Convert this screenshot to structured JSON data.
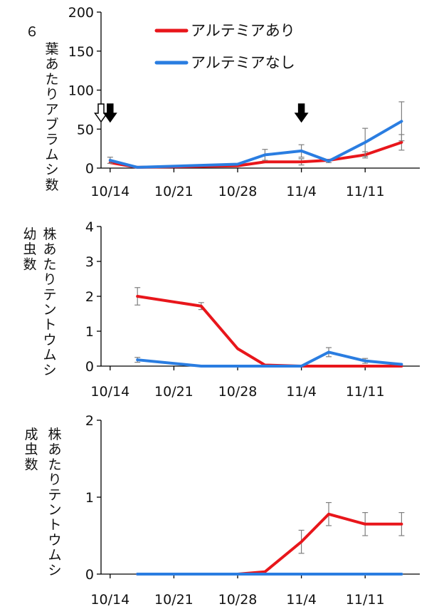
{
  "colors": {
    "with": "#e8161b",
    "without": "#2a7de1",
    "error": "#7f7f7f",
    "axis": "#000000"
  },
  "legend": {
    "with_label": "アルテミアあり",
    "without_label": "アルテミアなし"
  },
  "xaxis": {
    "ticks": [
      {
        "label": "10/14",
        "day": 0
      },
      {
        "label": "10/21",
        "day": 7
      },
      {
        "label": "10/28",
        "day": 14
      },
      {
        "label": "11/4",
        "day": 21
      },
      {
        "label": "11/11",
        "day": 28
      }
    ]
  },
  "chart_data": [
    {
      "type": "line",
      "ylabel_lines": [
        "６",
        "葉あたりアブラムシ数"
      ],
      "yticks": [
        0,
        50,
        100,
        150,
        200
      ],
      "ylim": [
        0,
        200
      ],
      "xlim": [
        "10/13",
        "11/17"
      ],
      "markers": [
        {
          "kind": "open-arrow",
          "x": "10/13"
        },
        {
          "kind": "filled-arrow",
          "x": "10/14"
        },
        {
          "kind": "filled-arrow",
          "x": "11/4"
        }
      ],
      "series": [
        {
          "name": "アルテミアあり",
          "color": "#e8161b",
          "points": [
            {
              "x": "10/14",
              "y": 7,
              "err": 0
            },
            {
              "x": "10/17",
              "y": 1
            },
            {
              "x": "10/28",
              "y": 3
            },
            {
              "x": "10/31",
              "y": 8,
              "err": 0
            },
            {
              "x": "11/4",
              "y": 8,
              "err": 4
            },
            {
              "x": "11/7",
              "y": 10
            },
            {
              "x": "11/11",
              "y": 17,
              "err": 4
            },
            {
              "x": "11/15",
              "y": 33,
              "err": 10
            }
          ]
        },
        {
          "name": "アルテミアなし",
          "color": "#2a7de1",
          "points": [
            {
              "x": "10/14",
              "y": 10,
              "err": 4
            },
            {
              "x": "10/17",
              "y": 1
            },
            {
              "x": "10/28",
              "y": 5
            },
            {
              "x": "10/31",
              "y": 17,
              "err": 7
            },
            {
              "x": "11/4",
              "y": 22,
              "err": 8
            },
            {
              "x": "11/7",
              "y": 9,
              "err": 2
            },
            {
              "x": "11/11",
              "y": 33,
              "err": 18
            },
            {
              "x": "11/15",
              "y": 60,
              "err": 25
            }
          ]
        }
      ]
    },
    {
      "type": "line",
      "ylabel_lines": [
        "株あたりテントウムシ",
        "幼虫数"
      ],
      "yticks": [
        0,
        1,
        2,
        3,
        4
      ],
      "ylim": [
        0,
        4
      ],
      "xlim": [
        "10/13",
        "11/17"
      ],
      "series": [
        {
          "name": "アルテミアあり",
          "color": "#e8161b",
          "points": [
            {
              "x": "10/17",
              "y": 2.0,
              "err": 0.25
            },
            {
              "x": "10/24",
              "y": 1.72,
              "err": 0.1
            },
            {
              "x": "10/28",
              "y": 0.5
            },
            {
              "x": "10/31",
              "y": 0.03
            },
            {
              "x": "11/4",
              "y": 0
            },
            {
              "x": "11/7",
              "y": 0
            },
            {
              "x": "11/11",
              "y": 0
            },
            {
              "x": "11/15",
              "y": 0
            }
          ]
        },
        {
          "name": "アルテミアなし",
          "color": "#2a7de1",
          "points": [
            {
              "x": "10/17",
              "y": 0.18,
              "err": 0.07
            },
            {
              "x": "10/24",
              "y": 0
            },
            {
              "x": "10/28",
              "y": 0
            },
            {
              "x": "10/31",
              "y": 0
            },
            {
              "x": "11/4",
              "y": 0
            },
            {
              "x": "11/7",
              "y": 0.4,
              "err": 0.13
            },
            {
              "x": "11/11",
              "y": 0.15,
              "err": 0.07
            },
            {
              "x": "11/15",
              "y": 0.05
            }
          ]
        }
      ]
    },
    {
      "type": "line",
      "ylabel_lines": [
        "株あたりテントウムシ",
        "成虫数"
      ],
      "yticks": [
        0,
        1,
        2
      ],
      "ylim": [
        0,
        2
      ],
      "xlim": [
        "10/13",
        "11/17"
      ],
      "series": [
        {
          "name": "アルテミアあり",
          "color": "#e8161b",
          "points": [
            {
              "x": "10/17",
              "y": 0
            },
            {
              "x": "10/24",
              "y": 0
            },
            {
              "x": "10/28",
              "y": 0
            },
            {
              "x": "10/31",
              "y": 0.03
            },
            {
              "x": "11/4",
              "y": 0.42,
              "err": 0.15
            },
            {
              "x": "11/7",
              "y": 0.78,
              "err": 0.15
            },
            {
              "x": "11/11",
              "y": 0.65,
              "err": 0.15
            },
            {
              "x": "11/15",
              "y": 0.65,
              "err": 0.15
            }
          ]
        },
        {
          "name": "アルテミアなし",
          "color": "#2a7de1",
          "points": [
            {
              "x": "10/17",
              "y": 0
            },
            {
              "x": "10/24",
              "y": 0
            },
            {
              "x": "10/28",
              "y": 0
            },
            {
              "x": "10/31",
              "y": 0
            },
            {
              "x": "11/4",
              "y": 0
            },
            {
              "x": "11/7",
              "y": 0
            },
            {
              "x": "11/11",
              "y": 0
            },
            {
              "x": "11/15",
              "y": 0
            }
          ]
        }
      ]
    }
  ]
}
